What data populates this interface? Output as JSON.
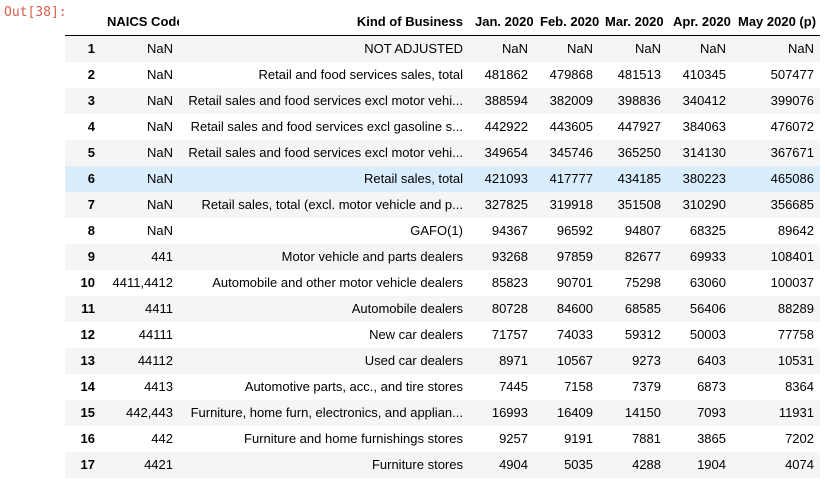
{
  "prompt": {
    "label": "Out[38]:"
  },
  "colors": {
    "prompt_text": "#d65c4e",
    "header_border": "#000000",
    "row_stripe": "#f5f5f5",
    "row_highlight": "#d9edfd",
    "text": "#000000"
  },
  "table": {
    "columns": [
      "",
      "NAICS Code",
      "Kind of Business",
      "Jan. 2020",
      "Feb. 2020",
      "Mar. 2020",
      "Apr. 2020",
      "May 2020 (p)"
    ],
    "highlight_row": 6,
    "rows": [
      [
        "1",
        "NaN",
        "NOT ADJUSTED",
        "NaN",
        "NaN",
        "NaN",
        "NaN",
        "NaN"
      ],
      [
        "2",
        "NaN",
        "Retail and food services sales, total",
        "481862",
        "479868",
        "481513",
        "410345",
        "507477"
      ],
      [
        "3",
        "NaN",
        "Retail sales and food services excl motor vehi...",
        "388594",
        "382009",
        "398836",
        "340412",
        "399076"
      ],
      [
        "4",
        "NaN",
        "Retail sales and food services excl gasoline s...",
        "442922",
        "443605",
        "447927",
        "384063",
        "476072"
      ],
      [
        "5",
        "NaN",
        "Retail sales and food services excl motor vehi...",
        "349654",
        "345746",
        "365250",
        "314130",
        "367671"
      ],
      [
        "6",
        "NaN",
        "Retail sales, total",
        "421093",
        "417777",
        "434185",
        "380223",
        "465086"
      ],
      [
        "7",
        "NaN",
        "Retail sales, total (excl. motor vehicle and p...",
        "327825",
        "319918",
        "351508",
        "310290",
        "356685"
      ],
      [
        "8",
        "NaN",
        "GAFO(1)",
        "94367",
        "96592",
        "94807",
        "68325",
        "89642"
      ],
      [
        "9",
        "441",
        "Motor vehicle and parts dealers",
        "93268",
        "97859",
        "82677",
        "69933",
        "108401"
      ],
      [
        "10",
        "4411,4412",
        "Automobile and other motor vehicle dealers",
        "85823",
        "90701",
        "75298",
        "63060",
        "100037"
      ],
      [
        "11",
        "4411",
        "Automobile dealers",
        "80728",
        "84600",
        "68585",
        "56406",
        "88289"
      ],
      [
        "12",
        "44111",
        "New car dealers",
        "71757",
        "74033",
        "59312",
        "50003",
        "77758"
      ],
      [
        "13",
        "44112",
        "Used car dealers",
        "8971",
        "10567",
        "9273",
        "6403",
        "10531"
      ],
      [
        "14",
        "4413",
        "Automotive parts, acc., and tire stores",
        "7445",
        "7158",
        "7379",
        "6873",
        "8364"
      ],
      [
        "15",
        "442,443",
        "Furniture, home furn, electronics, and applian...",
        "16993",
        "16409",
        "14150",
        "7093",
        "11931"
      ],
      [
        "16",
        "442",
        "Furniture and home furnishings stores",
        "9257",
        "9191",
        "7881",
        "3865",
        "7202"
      ],
      [
        "17",
        "4421",
        "Furniture stores",
        "4904",
        "5035",
        "4288",
        "1904",
        "4074"
      ]
    ]
  }
}
